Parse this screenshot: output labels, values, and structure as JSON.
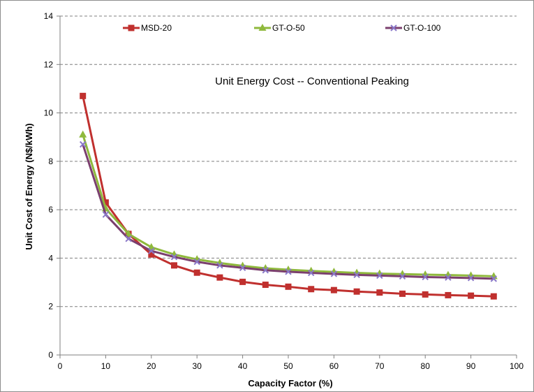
{
  "chart_data": {
    "type": "line",
    "title": "Unit Energy Cost -- Conventional Peaking",
    "xlabel": "Capacity Factor (%)",
    "ylabel": "Unit Cost of Energy (N$/kWh)",
    "xlim": [
      0,
      100
    ],
    "ylim": [
      0,
      14
    ],
    "xticks": [
      0,
      10,
      20,
      30,
      40,
      50,
      60,
      70,
      80,
      90,
      100
    ],
    "yticks": [
      0,
      2,
      4,
      6,
      8,
      10,
      12,
      14
    ],
    "grid": "horizontal dashed",
    "legend_position": "top",
    "x": [
      5,
      10,
      15,
      20,
      25,
      30,
      35,
      40,
      45,
      50,
      55,
      60,
      65,
      70,
      75,
      80,
      85,
      90,
      95
    ],
    "series": [
      {
        "name": "MSD-20",
        "color": "#c0302e",
        "marker": "square",
        "values": [
          10.7,
          6.3,
          5.0,
          4.15,
          3.7,
          3.4,
          3.2,
          3.02,
          2.9,
          2.82,
          2.72,
          2.68,
          2.62,
          2.58,
          2.53,
          2.5,
          2.47,
          2.45,
          2.42
        ]
      },
      {
        "name": "GT-O-50",
        "color": "#8fb93c",
        "marker": "triangle",
        "values": [
          9.1,
          6.05,
          5.0,
          4.45,
          4.15,
          3.95,
          3.8,
          3.68,
          3.58,
          3.52,
          3.47,
          3.43,
          3.39,
          3.36,
          3.34,
          3.32,
          3.3,
          3.28,
          3.25
        ]
      },
      {
        "name": "GT-O-100",
        "color": "#7b3f6e",
        "marker": "x",
        "values": [
          8.7,
          5.8,
          4.8,
          4.3,
          4.05,
          3.85,
          3.7,
          3.6,
          3.5,
          3.44,
          3.39,
          3.35,
          3.31,
          3.28,
          3.25,
          3.22,
          3.2,
          3.18,
          3.15
        ]
      }
    ]
  }
}
